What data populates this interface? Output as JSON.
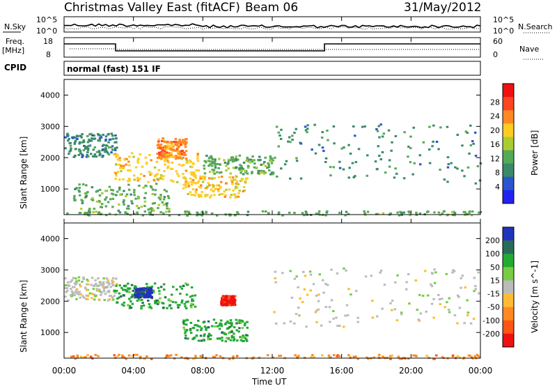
{
  "header": {
    "title": "Christmas Valley East (fitACF)",
    "beam": "Beam 06",
    "date": "31/May/2012"
  },
  "noise_panel": {
    "left_label": "N.Sky",
    "right_label": "N.Search",
    "left_ticks": [
      "10^5",
      "10^0"
    ],
    "right_ticks": [
      "10^5",
      "10^0"
    ]
  },
  "freq_panel": {
    "left_label_1": "Freq.",
    "left_label_2": "[MHz]",
    "right_label": "Nave",
    "left_ticks": [
      "18",
      "8"
    ],
    "right_ticks": [
      "60",
      "0"
    ]
  },
  "cpid": {
    "label": "CPID",
    "value": "normal (fast) 151 IF"
  },
  "chart_data": [
    {
      "type": "heatmap",
      "name": "Power",
      "ylabel": "Slant Range [km]",
      "xlabel": "Time UT",
      "ylim": [
        180,
        4500
      ],
      "xlim_hours": [
        0,
        24
      ],
      "x_ticks": [
        "00:00",
        "04:00",
        "08:00",
        "12:00",
        "16:00",
        "20:00",
        "00:00"
      ],
      "y_ticks": [
        1000,
        2000,
        3000,
        4000
      ],
      "colorbar": {
        "label": "Power [dB]",
        "ticks": [
          "4",
          "8",
          "12",
          "16",
          "20",
          "24",
          "28"
        ],
        "range": [
          0,
          30
        ],
        "colors": [
          "#2222ee",
          "#2a55cc",
          "#3a8a6a",
          "#55aa55",
          "#aacc33",
          "#ffcc22",
          "#ff8822",
          "#ff4422",
          "#ee1111"
        ]
      },
      "regions": [
        {
          "t0": 0.0,
          "t1": 3.0,
          "r0": 2050,
          "r1": 2800,
          "level": 8
        },
        {
          "t0": 2.8,
          "t1": 7.8,
          "r0": 1250,
          "r1": 2200,
          "level": 20
        },
        {
          "t0": 5.3,
          "t1": 7.0,
          "r0": 2000,
          "r1": 2650,
          "level": 24
        },
        {
          "t0": 6.8,
          "t1": 10.5,
          "r0": 750,
          "r1": 1450,
          "level": 20
        },
        {
          "t0": 8.0,
          "t1": 12.0,
          "r0": 1500,
          "r1": 2100,
          "level": 12
        },
        {
          "t0": 12.0,
          "t1": 24.0,
          "r0": 1200,
          "r1": 3100,
          "level": 6
        },
        {
          "t0": 0.5,
          "t1": 6.0,
          "r0": 250,
          "r1": 1200,
          "level": 12
        },
        {
          "t0": 0.0,
          "t1": 24.0,
          "r0": 180,
          "r1": 320,
          "level": 12
        }
      ]
    },
    {
      "type": "heatmap",
      "name": "Velocity",
      "ylabel": "Slant Range [km]",
      "xlabel": "Time UT",
      "ylim": [
        180,
        4500
      ],
      "xlim_hours": [
        0,
        24
      ],
      "x_ticks": [
        "00:00",
        "04:00",
        "08:00",
        "12:00",
        "16:00",
        "20:00",
        "00:00"
      ],
      "y_ticks": [
        1000,
        2000,
        3000,
        4000
      ],
      "colorbar": {
        "label": "Velocity [m s^-1]",
        "ticks": [
          "200",
          "100",
          "50",
          "15",
          "-15",
          "-50",
          "-100",
          "-200"
        ],
        "colors": [
          "#2233bb",
          "#2a6a5a",
          "#22aa33",
          "#77cc44",
          "#bbbbbb",
          "#ffbb33",
          "#ff8822",
          "#ff5511",
          "#ee1111"
        ]
      },
      "regions": [
        {
          "t0": 0.0,
          "t1": 3.0,
          "r0": 2050,
          "r1": 2800,
          "v": 0
        },
        {
          "t0": 2.8,
          "t1": 7.5,
          "r0": 1800,
          "r1": 2600,
          "v": 60
        },
        {
          "t0": 4.0,
          "t1": 5.0,
          "r0": 2150,
          "r1": 2450,
          "v": 180
        },
        {
          "t0": 6.8,
          "t1": 10.5,
          "r0": 750,
          "r1": 1450,
          "v": 40
        },
        {
          "t0": 9.0,
          "t1": 9.8,
          "r0": 1900,
          "r1": 2200,
          "v": -200
        },
        {
          "t0": 12.0,
          "t1": 24.0,
          "r0": 1200,
          "r1": 3100,
          "v": 0
        },
        {
          "t0": 0.0,
          "t1": 24.0,
          "r0": 180,
          "r1": 320,
          "v": -50
        }
      ]
    }
  ]
}
